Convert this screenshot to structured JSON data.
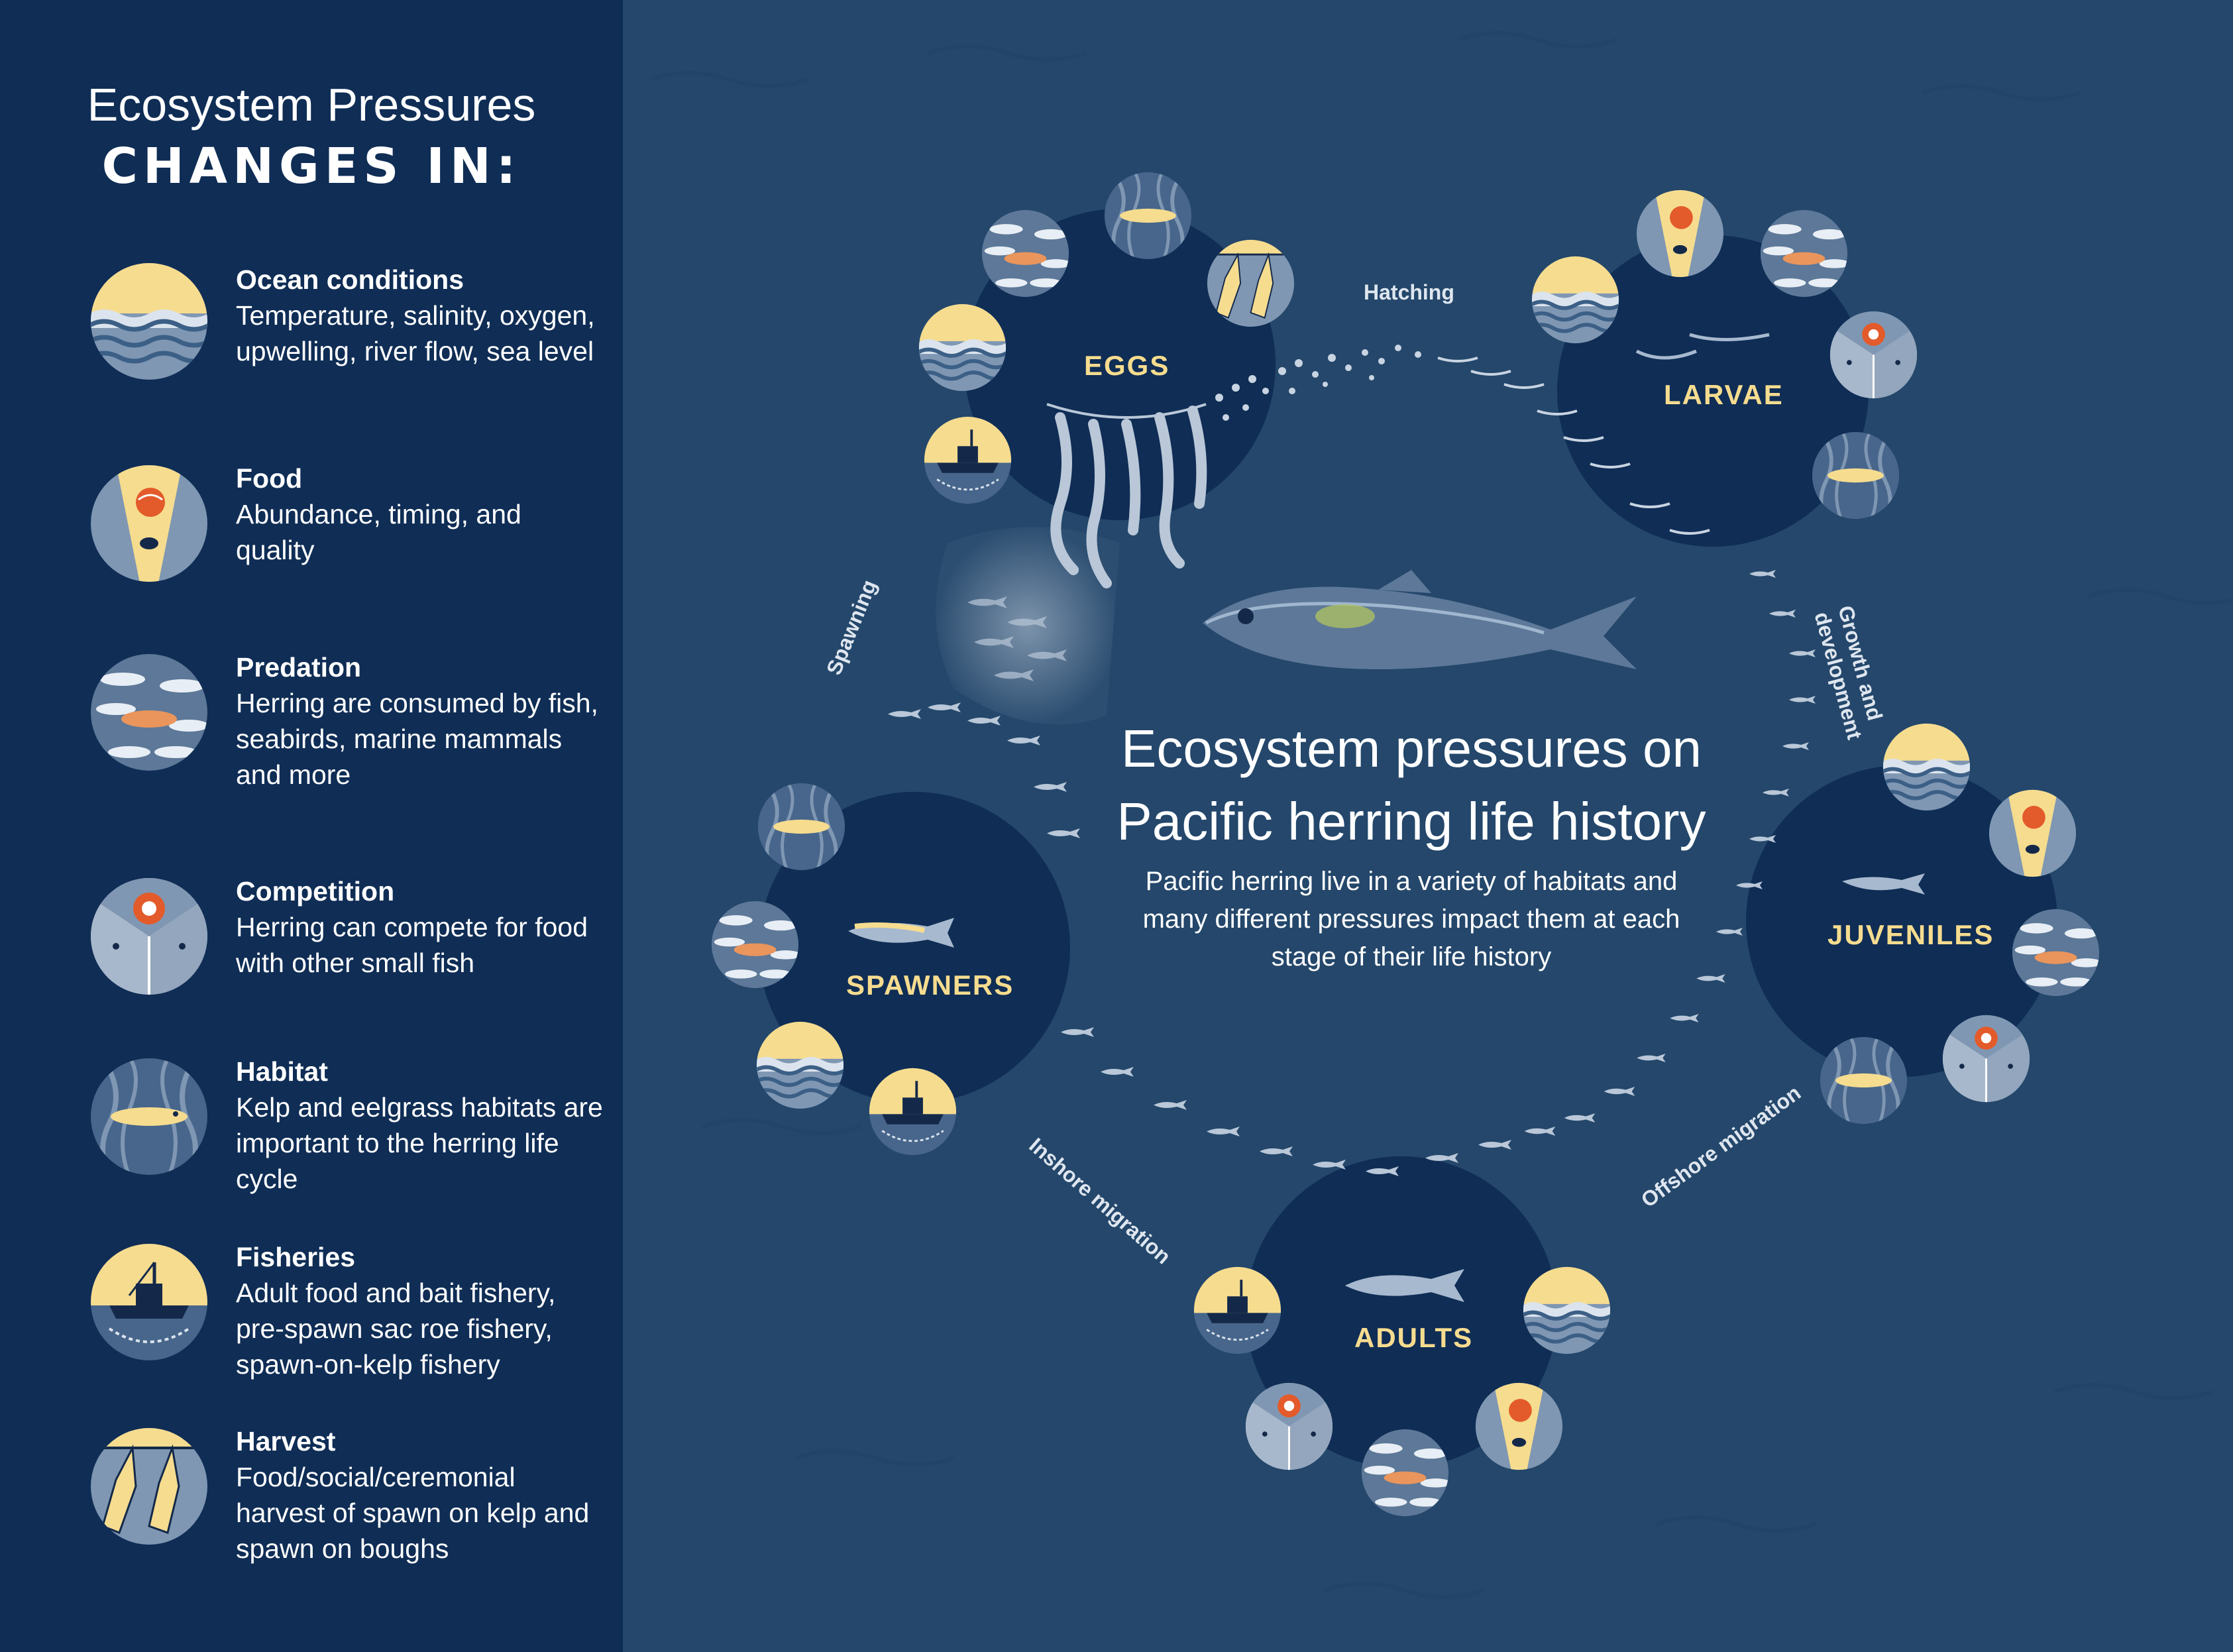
{
  "sidebar": {
    "title_line1": "Ecosystem Pressures",
    "title_line2": "CHANGES IN:",
    "items": [
      {
        "icon": "ocean-conditions-icon",
        "head": "Ocean conditions",
        "desc": "Temperature, salinity, oxygen, upwelling, river flow, sea level"
      },
      {
        "icon": "food-icon",
        "head": "Food",
        "desc": "Abundance, timing, and quality"
      },
      {
        "icon": "predation-icon",
        "head": "Predation",
        "desc": "Herring are consumed by fish, seabirds, marine mammals and more"
      },
      {
        "icon": "competition-icon",
        "head": "Competition",
        "desc": "Herring can compete for food with other small fish"
      },
      {
        "icon": "habitat-icon",
        "head": "Habitat",
        "desc": "Kelp and eelgrass habitats are important to the herring life cycle"
      },
      {
        "icon": "fisheries-icon",
        "head": "Fisheries",
        "desc": "Adult food and bait fishery, pre-spawn sac roe fishery, spawn-on-kelp fishery"
      },
      {
        "icon": "harvest-icon",
        "head": "Harvest",
        "desc": "Food/social/ceremonial harvest of spawn on kelp and spawn on boughs"
      }
    ]
  },
  "center": {
    "title": "Ecosystem pressures on Pacific herring life history",
    "subtitle": "Pacific herring live in a variety of habitats and many different pressures impact them at each stage of their life history"
  },
  "stages": {
    "eggs": "EGGS",
    "larvae": "LARVAE",
    "juveniles": "JUVENILES",
    "adults": "ADULTS",
    "spawners": "SPAWNERS"
  },
  "processes": {
    "hatching": "Hatching",
    "growth_line1": "Growth and",
    "growth_line2": "development",
    "offshore": "Offshore migration",
    "inshore": "Inshore migration",
    "spawning": "Spawning"
  },
  "colors": {
    "sidebar_bg": "#0f2d55",
    "ocean_bg": "#24476b",
    "stage_circle": "#0f2d55",
    "accent_yellow": "#f6dc8f",
    "icon_blue": "#7f97b3",
    "salmon": "#e9955c"
  }
}
